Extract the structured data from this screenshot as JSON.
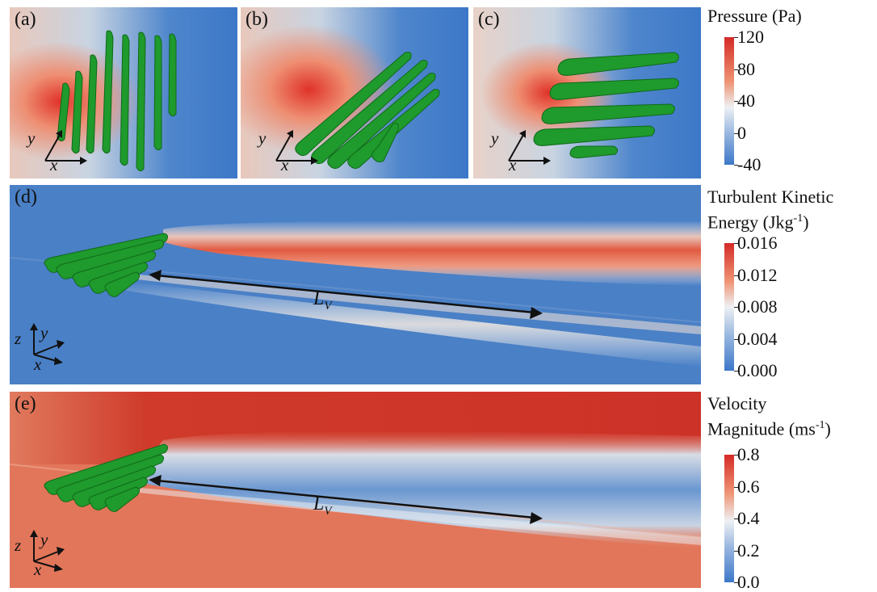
{
  "panels": {
    "a": {
      "label": "(a)"
    },
    "b": {
      "label": "(b)"
    },
    "c": {
      "label": "(c)"
    },
    "d": {
      "label": "(d)"
    },
    "e": {
      "label": "(e)"
    }
  },
  "axes": {
    "x": "x",
    "y": "y",
    "z": "z"
  },
  "annotation": {
    "lv_main": "L",
    "lv_sub": "V"
  },
  "colorbars": {
    "pressure": {
      "title": "Pressure (Pa)",
      "ticks": [
        "120",
        "80",
        "40",
        "0",
        "-40"
      ]
    },
    "tke": {
      "title_line1": "Turbulent Kinetic",
      "title_line2_a": "Energy (Jkg",
      "title_line2_sup": "-1",
      "title_line2_b": ")",
      "ticks": [
        "0.016",
        "0.012",
        "0.008",
        "0.004",
        "0.000"
      ]
    },
    "velocity": {
      "title_line1": "Velocity",
      "title_line2_a": "Magnitude (ms",
      "title_line2_sup": "-1",
      "title_line2_b": ")",
      "ticks": [
        "0.8",
        "0.6",
        "0.4",
        "0.2",
        "0.0"
      ]
    }
  },
  "colors": {
    "green_structure": "#1f9a2c",
    "red": "#d83a2e",
    "blue": "#3c78c8",
    "white": "#eef1f4"
  }
}
